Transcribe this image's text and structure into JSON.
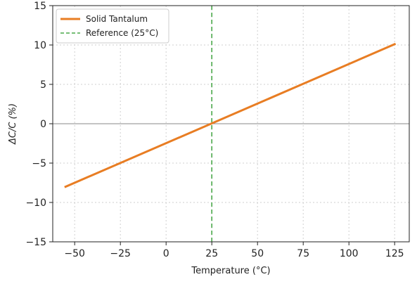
{
  "chart_data": {
    "type": "line",
    "title": "",
    "xlabel": "Temperature (°C)",
    "ylabel": "ΔC/C (%)",
    "xlim": [
      -62,
      133
    ],
    "ylim": [
      -15,
      15
    ],
    "xticks": [
      -50,
      -25,
      0,
      25,
      50,
      75,
      100,
      125
    ],
    "xtick_labels": [
      "−50",
      "−25",
      "0",
      "25",
      "50",
      "75",
      "100",
      "125"
    ],
    "yticks": [
      -15,
      -10,
      -5,
      0,
      5,
      10,
      15
    ],
    "ytick_labels": [
      "−15",
      "−10",
      "−5",
      "0",
      "5",
      "10",
      "15"
    ],
    "grid": true,
    "legend_position": "top-left",
    "series": [
      {
        "name": "Solid Tantalum",
        "color": "#e87d23",
        "style": "solid",
        "x": [
          -55,
          125
        ],
        "y": [
          -8,
          10.1
        ]
      }
    ],
    "reference_lines": [
      {
        "name": "Reference (25°C)",
        "orientation": "vertical",
        "value": 25,
        "color": "#4aa84a",
        "style": "dashed"
      },
      {
        "orientation": "horizontal",
        "value": 0,
        "color": "#8a8a8a",
        "style": "solid"
      }
    ]
  }
}
